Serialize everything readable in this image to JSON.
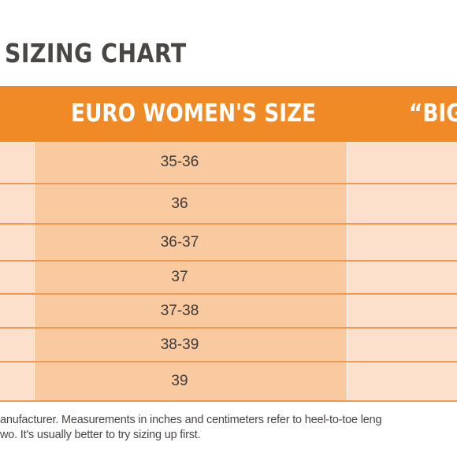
{
  "title": "SIZING CHART",
  "header": {
    "euro": "EURO WOMEN'S SIZE",
    "big": "“BIG"
  },
  "rows": [
    "35-36",
    "36",
    "36-37",
    "37",
    "37-38",
    "38-39",
    "39"
  ],
  "footnote": {
    "line1": "anufacturer. Measurements in inches and centimeters refer to heel-to-toe leng",
    "line2": "wo. It's usually better to try sizing up first."
  },
  "colors": {
    "header": "#ef8a27",
    "highlight_column": "#f9c9a0",
    "row_fill": "#fde0cb",
    "row_border": "#ef9a52"
  }
}
